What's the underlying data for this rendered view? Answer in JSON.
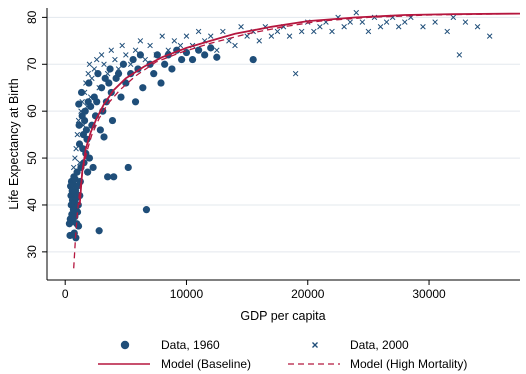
{
  "chart_data": {
    "type": "scatter",
    "title": "",
    "xlabel": "GDP per capita",
    "ylabel": "Life Expectancy at Birth",
    "xlim": [
      -1500,
      37500
    ],
    "ylim": [
      24,
      82
    ],
    "xticks": [
      0,
      10000,
      20000,
      30000
    ],
    "xtick_labels": [
      "0",
      "10000",
      "20000",
      "30000"
    ],
    "yticks": [
      30,
      40,
      50,
      60,
      70,
      80
    ],
    "ytick_labels": [
      "30",
      "40",
      "50",
      "60",
      "70",
      "80"
    ],
    "grid": "horizontal",
    "legend_position": "bottom",
    "colors": {
      "data": "#1f4e79",
      "model": "#b5173f",
      "grid": "#e3e8ee"
    },
    "series": [
      {
        "name": "Data, 1960",
        "kind": "scatter",
        "marker": "circle",
        "points": [
          [
            350,
            36
          ],
          [
            400,
            33.5
          ],
          [
            420,
            37
          ],
          [
            450,
            44
          ],
          [
            480,
            42
          ],
          [
            500,
            40
          ],
          [
            520,
            45
          ],
          [
            550,
            38
          ],
          [
            580,
            43
          ],
          [
            600,
            41
          ],
          [
            620,
            36.5
          ],
          [
            650,
            44.5
          ],
          [
            680,
            39
          ],
          [
            700,
            42.5
          ],
          [
            720,
            46
          ],
          [
            750,
            34
          ],
          [
            780,
            40.5
          ],
          [
            800,
            37.5
          ],
          [
            820,
            45.5
          ],
          [
            850,
            43
          ],
          [
            880,
            33
          ],
          [
            900,
            39.5
          ],
          [
            920,
            41.5
          ],
          [
            950,
            36
          ],
          [
            980,
            47
          ],
          [
            1000,
            44
          ],
          [
            1020,
            38.5
          ],
          [
            1050,
            42
          ],
          [
            1080,
            40
          ],
          [
            1100,
            35.5
          ],
          [
            1120,
            61.5
          ],
          [
            1150,
            57
          ],
          [
            1180,
            53
          ],
          [
            1200,
            42
          ],
          [
            1250,
            45
          ],
          [
            1300,
            48
          ],
          [
            1350,
            64
          ],
          [
            1400,
            59
          ],
          [
            1450,
            52
          ],
          [
            1500,
            55
          ],
          [
            1550,
            49
          ],
          [
            1600,
            58
          ],
          [
            1650,
            60
          ],
          [
            1700,
            51
          ],
          [
            1750,
            56
          ],
          [
            1800,
            54
          ],
          [
            1850,
            47
          ],
          [
            1900,
            62
          ],
          [
            1950,
            66
          ],
          [
            2000,
            50
          ],
          [
            2100,
            61
          ],
          [
            2200,
            57
          ],
          [
            2300,
            48
          ],
          [
            2400,
            63
          ],
          [
            2500,
            59
          ],
          [
            2600,
            62
          ],
          [
            2700,
            68
          ],
          [
            2800,
            34.5
          ],
          [
            2900,
            56
          ],
          [
            3000,
            65
          ],
          [
            3100,
            60
          ],
          [
            3200,
            54.5
          ],
          [
            3300,
            67
          ],
          [
            3400,
            62
          ],
          [
            3500,
            46
          ],
          [
            3600,
            66
          ],
          [
            3700,
            69
          ],
          [
            3800,
            64
          ],
          [
            3900,
            58
          ],
          [
            4000,
            46
          ],
          [
            4200,
            67
          ],
          [
            4400,
            68
          ],
          [
            4600,
            63
          ],
          [
            4800,
            70
          ],
          [
            5000,
            66
          ],
          [
            5200,
            48
          ],
          [
            5400,
            68
          ],
          [
            5600,
            71
          ],
          [
            5800,
            62
          ],
          [
            6000,
            69
          ],
          [
            6200,
            72
          ],
          [
            6400,
            65
          ],
          [
            6700,
            39
          ],
          [
            7000,
            70
          ],
          [
            7300,
            68
          ],
          [
            7600,
            72
          ],
          [
            7900,
            66
          ],
          [
            8200,
            70
          ],
          [
            8500,
            72
          ],
          [
            8800,
            69
          ],
          [
            9200,
            73
          ],
          [
            9600,
            71
          ],
          [
            10000,
            72.5
          ],
          [
            10500,
            71
          ],
          [
            11000,
            73
          ],
          [
            11500,
            72
          ],
          [
            12000,
            73.5
          ],
          [
            12500,
            71.5
          ],
          [
            15500,
            71
          ]
        ]
      },
      {
        "name": "Data, 2000",
        "kind": "scatter",
        "marker": "x",
        "points": [
          [
            500,
            45
          ],
          [
            600,
            42
          ],
          [
            700,
            48
          ],
          [
            800,
            50
          ],
          [
            900,
            52
          ],
          [
            1000,
            55
          ],
          [
            1100,
            58
          ],
          [
            1200,
            49
          ],
          [
            1300,
            60
          ],
          [
            1400,
            62
          ],
          [
            1500,
            57
          ],
          [
            1600,
            64
          ],
          [
            1700,
            66
          ],
          [
            1800,
            61
          ],
          [
            1900,
            68
          ],
          [
            2000,
            70
          ],
          [
            2100,
            63
          ],
          [
            2200,
            67
          ],
          [
            2400,
            69
          ],
          [
            2600,
            71
          ],
          [
            2800,
            65
          ],
          [
            3000,
            72
          ],
          [
            3200,
            70
          ],
          [
            3500,
            68
          ],
          [
            3800,
            73
          ],
          [
            4100,
            71
          ],
          [
            4400,
            69
          ],
          [
            4700,
            74
          ],
          [
            5000,
            72
          ],
          [
            5400,
            70
          ],
          [
            5800,
            73
          ],
          [
            6200,
            75
          ],
          [
            6600,
            71
          ],
          [
            7000,
            74
          ],
          [
            7500,
            72
          ],
          [
            8000,
            76
          ],
          [
            8500,
            73
          ],
          [
            9000,
            75
          ],
          [
            9500,
            74
          ],
          [
            10000,
            76
          ],
          [
            10500,
            74
          ],
          [
            11000,
            77
          ],
          [
            11500,
            75
          ],
          [
            12000,
            76
          ],
          [
            12500,
            73
          ],
          [
            13000,
            77
          ],
          [
            13500,
            75
          ],
          [
            14000,
            74
          ],
          [
            14500,
            78
          ],
          [
            15000,
            76
          ],
          [
            15500,
            77
          ],
          [
            16000,
            75
          ],
          [
            16500,
            78
          ],
          [
            17000,
            76
          ],
          [
            17500,
            77
          ],
          [
            18000,
            78
          ],
          [
            18500,
            76
          ],
          [
            19000,
            68
          ],
          [
            19500,
            77
          ],
          [
            20000,
            79
          ],
          [
            20500,
            77
          ],
          [
            21000,
            78
          ],
          [
            21500,
            79
          ],
          [
            22000,
            77
          ],
          [
            22500,
            80
          ],
          [
            23000,
            78
          ],
          [
            23500,
            79
          ],
          [
            24000,
            81
          ],
          [
            24500,
            79
          ],
          [
            25000,
            77
          ],
          [
            25500,
            80
          ],
          [
            26000,
            78
          ],
          [
            26500,
            79
          ],
          [
            27000,
            80
          ],
          [
            27500,
            78
          ],
          [
            28000,
            79
          ],
          [
            28500,
            80
          ],
          [
            29500,
            78
          ],
          [
            30500,
            79
          ],
          [
            31500,
            77
          ],
          [
            32000,
            80
          ],
          [
            32500,
            72
          ],
          [
            33000,
            79
          ],
          [
            34000,
            78
          ],
          [
            35000,
            76
          ]
        ]
      },
      {
        "name": "Model (Baseline)",
        "kind": "line",
        "style": "solid",
        "points": [
          [
            1200,
            40
          ],
          [
            1400,
            47
          ],
          [
            1700,
            52
          ],
          [
            2100,
            55.5
          ],
          [
            2600,
            58.5
          ],
          [
            3200,
            61.5
          ],
          [
            4000,
            64.5
          ],
          [
            5000,
            67
          ],
          [
            6500,
            69.5
          ],
          [
            8000,
            71.5
          ],
          [
            10000,
            73.5
          ],
          [
            12000,
            75
          ],
          [
            14000,
            76.5
          ],
          [
            17000,
            78
          ],
          [
            20000,
            79.2
          ],
          [
            24000,
            80
          ],
          [
            28000,
            80.5
          ],
          [
            32000,
            80.7
          ],
          [
            37500,
            80.8
          ]
        ]
      },
      {
        "name": "Model (High Mortality)",
        "kind": "line",
        "style": "dashed",
        "points": [
          [
            700,
            26.5
          ],
          [
            850,
            33
          ],
          [
            1000,
            38
          ],
          [
            1200,
            43
          ],
          [
            1500,
            48
          ],
          [
            1800,
            51.5
          ],
          [
            2200,
            55
          ],
          [
            2800,
            58.5
          ],
          [
            3500,
            61.5
          ],
          [
            4500,
            64.5
          ],
          [
            5800,
            67.5
          ],
          [
            7500,
            70.5
          ],
          [
            9500,
            72.5
          ],
          [
            12000,
            74.5
          ],
          [
            15000,
            76.5
          ],
          [
            18000,
            78
          ],
          [
            21000,
            79.2
          ],
          [
            25000,
            80
          ],
          [
            30000,
            80.5
          ],
          [
            37500,
            80.8
          ]
        ]
      }
    ]
  }
}
